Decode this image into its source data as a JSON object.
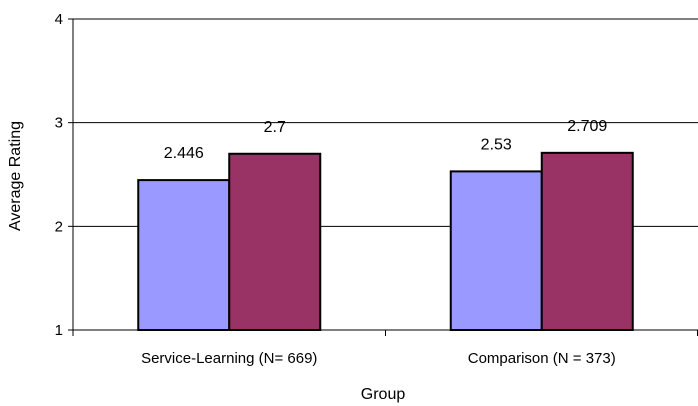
{
  "chart_data": {
    "type": "bar",
    "title": "",
    "xlabel": "Group",
    "ylabel": "Average Rating",
    "ylim": [
      1,
      4
    ],
    "yticks": [
      1,
      2,
      3,
      4
    ],
    "grid": true,
    "legend": "none",
    "categories": [
      "Service-Learning (N= 669)",
      "Comparison (N = 373)"
    ],
    "series": [
      {
        "values": [
          2.446,
          2.53
        ],
        "labels": [
          "2.446",
          "2.53"
        ],
        "color": "#9999ff"
      },
      {
        "values": [
          2.7,
          2.709
        ],
        "labels": [
          "2.7",
          "2.709"
        ],
        "color": "#993366"
      }
    ]
  }
}
